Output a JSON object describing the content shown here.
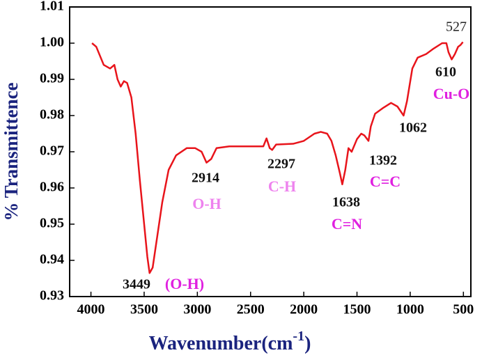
{
  "chart_data": {
    "type": "line",
    "xlabel": "Wavenumber(cm",
    "xlabel_sup": "-1",
    "xlabel_end": ")",
    "ylabel": "% Transmittence",
    "color": "#e8141b",
    "axis_label_color": "#1a237e",
    "xlim": [
      4200,
      430
    ],
    "ylim": [
      0.93,
      1.01
    ],
    "xticks": [
      4000,
      3500,
      3000,
      2500,
      2000,
      1500,
      1000,
      500
    ],
    "yticks": [
      0.93,
      0.94,
      0.95,
      0.96,
      0.97,
      0.98,
      0.99,
      {
        "value": 1,
        "label": "1.00"
      },
      1.01
    ],
    "x": [
      3990,
      3950,
      3880,
      3820,
      3780,
      3750,
      3720,
      3690,
      3660,
      3620,
      3580,
      3540,
      3500,
      3470,
      3449,
      3420,
      3380,
      3330,
      3270,
      3200,
      3100,
      3020,
      2960,
      2914,
      2870,
      2820,
      2700,
      2500,
      2380,
      2350,
      2320,
      2297,
      2260,
      2100,
      2000,
      1900,
      1840,
      1780,
      1740,
      1700,
      1660,
      1638,
      1610,
      1580,
      1550,
      1500,
      1460,
      1430,
      1392,
      1370,
      1330,
      1260,
      1180,
      1120,
      1062,
      1030,
      980,
      930,
      850,
      780,
      700,
      660,
      640,
      610,
      580,
      550,
      527,
      505
    ],
    "values": [
      1.0,
      0.999,
      0.994,
      0.993,
      0.994,
      0.99,
      0.988,
      0.9895,
      0.989,
      0.985,
      0.975,
      0.962,
      0.95,
      0.941,
      0.9365,
      0.938,
      0.946,
      0.956,
      0.965,
      0.969,
      0.971,
      0.971,
      0.97,
      0.967,
      0.968,
      0.971,
      0.9715,
      0.9715,
      0.9715,
      0.9737,
      0.971,
      0.9705,
      0.972,
      0.9722,
      0.973,
      0.975,
      0.9755,
      0.975,
      0.973,
      0.969,
      0.964,
      0.961,
      0.965,
      0.971,
      0.97,
      0.9735,
      0.975,
      0.9745,
      0.973,
      0.977,
      0.9805,
      0.982,
      0.9835,
      0.9825,
      0.98,
      0.984,
      0.993,
      0.996,
      0.997,
      0.9985,
      1.0,
      1.0,
      0.9975,
      0.9955,
      0.997,
      0.999,
      0.9995,
      1.0003
    ],
    "annotations": [
      {
        "text": "527",
        "color": "#222222"
      },
      {
        "text": "610",
        "color": "#111111"
      },
      {
        "text": "Cu-O",
        "color": "#e020e0"
      },
      {
        "text": "1062",
        "color": "#111111"
      },
      {
        "text": "1392",
        "color": "#111111"
      },
      {
        "text": "C=C",
        "color": "#e020e0"
      },
      {
        "text": "1638",
        "color": "#111111"
      },
      {
        "text": "C=N",
        "color": "#e020e0"
      },
      {
        "text": "2297",
        "color": "#111111"
      },
      {
        "text": "C-H",
        "color": "#ee82ee"
      },
      {
        "text": "2914",
        "color": "#111111"
      },
      {
        "text": "O-H",
        "color": "#ee82ee"
      },
      {
        "text": "3449",
        "color": "#111111"
      },
      {
        "text": "(O-H)",
        "color": "#e020e0"
      }
    ]
  }
}
